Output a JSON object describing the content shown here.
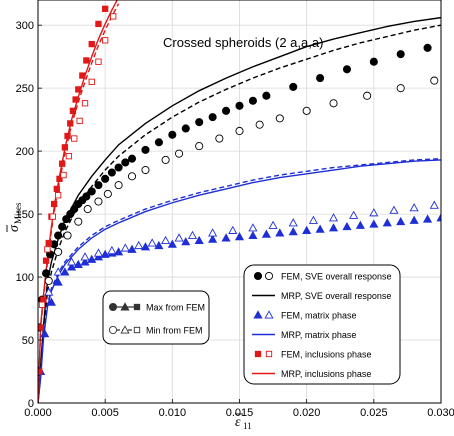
{
  "chart_data": {
    "type": "line",
    "title": "Crossed spheroids (2 a,a,a)",
    "xlabel": {
      "main": "ε",
      "sub": "11"
    },
    "ylabel": {
      "main": "σ",
      "sub": "Mises"
    },
    "xlim": [
      0,
      0.03
    ],
    "ylim": [
      0,
      320
    ],
    "xticks": [
      "0.000",
      "0.005",
      "0.010",
      "0.015",
      "0.020",
      "0.025",
      "0.030"
    ],
    "xtick_values": [
      0,
      0.005,
      0.01,
      0.015,
      0.02,
      0.025,
      0.03
    ],
    "yticks": [
      "0",
      "50",
      "100",
      "150",
      "200",
      "250",
      "300"
    ],
    "ytick_values": [
      0,
      50,
      100,
      150,
      200,
      250,
      300
    ],
    "grid": true,
    "colors": {
      "overall": "#000000",
      "matrix": "#1f2fd6",
      "inclusion": "#e01818"
    },
    "series": [
      {
        "name": "MRP, SVE overall response",
        "kind": "line",
        "dash": false,
        "color": "#000000",
        "x": [
          0,
          0.0002,
          0.0004,
          0.0007,
          0.001,
          0.0015,
          0.002,
          0.003,
          0.004,
          0.005,
          0.006,
          0.008,
          0.01,
          0.012,
          0.014,
          0.016,
          0.018,
          0.02,
          0.022,
          0.024,
          0.026,
          0.028,
          0.03
        ],
        "y": [
          0,
          30,
          60,
          96,
          112,
          130,
          145,
          165,
          180,
          193,
          205,
          222,
          236,
          248,
          258,
          267,
          275,
          283,
          289,
          294,
          299,
          303,
          306
        ]
      },
      {
        "name": "Max from FEM (overall)",
        "kind": "line",
        "dash": true,
        "color": "#000000",
        "x": [
          0,
          0.0002,
          0.0004,
          0.0007,
          0.001,
          0.0015,
          0.002,
          0.003,
          0.004,
          0.005,
          0.006,
          0.008,
          0.01,
          0.012,
          0.014,
          0.016,
          0.018,
          0.02,
          0.022,
          0.024,
          0.026,
          0.028,
          0.03
        ],
        "y": [
          0,
          25,
          55,
          88,
          104,
          122,
          136,
          157,
          172,
          185,
          196,
          213,
          227,
          239,
          249,
          258,
          266,
          273,
          280,
          286,
          291,
          296,
          300
        ]
      },
      {
        "name": "FEM, SVE overall response (max)",
        "kind": "marker",
        "marker": "filled-circle",
        "color": "#000000",
        "x": [
          5e-05,
          0.0001,
          0.0003,
          0.0006,
          0.0009,
          0.0012,
          0.0015,
          0.0018,
          0.0021,
          0.0024,
          0.0027,
          0.003,
          0.0033,
          0.0036,
          0.004,
          0.0045,
          0.005,
          0.0055,
          0.006,
          0.0065,
          0.007,
          0.008,
          0.009,
          0.01,
          0.011,
          0.012,
          0.013,
          0.014,
          0.015,
          0.016,
          0.017,
          0.019,
          0.021,
          0.023,
          0.025,
          0.027,
          0.029
        ],
        "y": [
          25,
          60,
          82,
          103,
          118,
          126,
          133,
          140,
          146,
          150,
          154,
          158,
          161,
          164,
          168,
          173,
          178,
          183,
          187,
          191,
          194,
          201,
          207,
          213,
          218,
          223,
          227,
          232,
          236,
          240,
          244,
          251,
          258,
          265,
          271,
          277,
          282
        ]
      },
      {
        "name": "FEM, SVE overall response (min)",
        "kind": "marker",
        "marker": "open-circle",
        "color": "#000000",
        "x": [
          0.0008,
          0.0015,
          0.0022,
          0.003,
          0.0037,
          0.0045,
          0.0052,
          0.006,
          0.007,
          0.008,
          0.0095,
          0.0105,
          0.012,
          0.0135,
          0.015,
          0.0165,
          0.018,
          0.02,
          0.022,
          0.0245,
          0.027,
          0.0295
        ],
        "y": [
          97,
          120,
          133,
          144,
          154,
          160,
          166,
          173,
          180,
          185,
          193,
          198,
          204,
          210,
          216,
          221,
          226,
          232,
          238,
          244,
          250,
          256
        ]
      },
      {
        "name": "MRP, matrix phase",
        "kind": "line",
        "dash": false,
        "color": "#1f2fd6",
        "x": [
          0,
          0.0002,
          0.0004,
          0.0007,
          0.001,
          0.0015,
          0.002,
          0.003,
          0.004,
          0.005,
          0.006,
          0.008,
          0.01,
          0.012,
          0.014,
          0.016,
          0.018,
          0.02,
          0.022,
          0.024,
          0.026,
          0.028,
          0.03
        ],
        "y": [
          0,
          20,
          50,
          76,
          89,
          101,
          110,
          122,
          131,
          138,
          143,
          152,
          159,
          165,
          170,
          175,
          179,
          182,
          185,
          188,
          190,
          192,
          193
        ]
      },
      {
        "name": "Max from FEM (matrix)",
        "kind": "line",
        "dash": true,
        "color": "#1f2fd6",
        "x": [
          0,
          0.0002,
          0.0004,
          0.0007,
          0.001,
          0.0015,
          0.002,
          0.003,
          0.004,
          0.005,
          0.006,
          0.008,
          0.01,
          0.012,
          0.014,
          0.016,
          0.018,
          0.02,
          0.022,
          0.024,
          0.026,
          0.028,
          0.03
        ],
        "y": [
          0,
          22,
          52,
          78,
          91,
          103,
          112,
          124,
          133,
          140,
          145,
          154,
          161,
          167,
          172,
          177,
          181,
          184,
          187,
          189,
          191,
          193,
          194
        ]
      },
      {
        "name": "FEM, matrix phase (max)",
        "kind": "marker",
        "marker": "filled-triangle",
        "color": "#1f2fd6",
        "x": [
          0.0002,
          0.0005,
          0.001,
          0.0015,
          0.002,
          0.0025,
          0.003,
          0.0035,
          0.004,
          0.0045,
          0.005,
          0.0055,
          0.006,
          0.007,
          0.008,
          0.009,
          0.01,
          0.011,
          0.012,
          0.013,
          0.014,
          0.015,
          0.016,
          0.017,
          0.018,
          0.019,
          0.02,
          0.021,
          0.022,
          0.023,
          0.024,
          0.025,
          0.026,
          0.027,
          0.028,
          0.029,
          0.03
        ],
        "y": [
          25,
          55,
          80,
          96,
          104,
          108,
          110,
          112,
          114,
          116,
          118,
          119,
          120,
          122,
          124,
          125,
          126,
          128,
          129,
          130,
          131,
          132,
          133,
          134,
          135,
          136,
          137,
          138,
          139,
          140,
          141,
          142,
          143,
          144,
          145,
          146,
          147
        ]
      },
      {
        "name": "FEM, matrix phase (min)",
        "kind": "marker",
        "marker": "open-triangle",
        "color": "#1f2fd6",
        "x": [
          0.0008,
          0.0015,
          0.0025,
          0.0035,
          0.0045,
          0.0055,
          0.0065,
          0.0075,
          0.0085,
          0.0095,
          0.0105,
          0.0115,
          0.013,
          0.0145,
          0.016,
          0.0175,
          0.019,
          0.0205,
          0.022,
          0.0235,
          0.025,
          0.0265,
          0.028,
          0.0295
        ],
        "y": [
          88,
          104,
          112,
          116,
          119,
          121,
          123,
          125,
          127,
          129,
          131,
          133,
          135,
          137,
          139,
          141,
          143,
          145,
          147,
          149,
          151,
          153,
          155,
          157
        ]
      },
      {
        "name": "MRP, inclusions phase",
        "kind": "line",
        "dash": false,
        "color": "#e01818",
        "x": [
          0,
          0.0001,
          0.0002,
          0.0004,
          0.0006,
          0.0008,
          0.001,
          0.0013,
          0.0016,
          0.002,
          0.0025,
          0.003,
          0.0035,
          0.004,
          0.0045,
          0.005,
          0.0055,
          0.006
        ],
        "y": [
          0,
          30,
          62,
          85,
          105,
          123,
          140,
          162,
          180,
          202,
          225,
          243,
          260,
          275,
          289,
          301,
          312,
          322
        ]
      },
      {
        "name": "Max from FEM (inclusions)",
        "kind": "line",
        "dash": true,
        "color": "#e01818",
        "x": [
          0,
          0.0001,
          0.0002,
          0.0004,
          0.0006,
          0.0008,
          0.001,
          0.0013,
          0.0016,
          0.002,
          0.0025,
          0.003,
          0.0035,
          0.004,
          0.0045,
          0.005,
          0.0055,
          0.006
        ],
        "y": [
          0,
          28,
          60,
          82,
          102,
          120,
          137,
          158,
          176,
          198,
          221,
          239,
          255,
          270,
          284,
          296,
          307,
          317
        ]
      },
      {
        "name": "FEM, inclusions phase (max)",
        "kind": "marker",
        "marker": "filled-square",
        "color": "#e01818",
        "x": [
          0.0001,
          0.0002,
          0.0004,
          0.0006,
          0.0008,
          0.001,
          0.0012,
          0.0014,
          0.0016,
          0.0018,
          0.002,
          0.0022,
          0.0024,
          0.0026,
          0.0028,
          0.003,
          0.0033,
          0.0036,
          0.004,
          0.0045,
          0.005
        ],
        "y": [
          25,
          60,
          82,
          113,
          127,
          148,
          158,
          170,
          178,
          190,
          203,
          212,
          222,
          232,
          241,
          249,
          260,
          272,
          285,
          301,
          313
        ]
      },
      {
        "name": "FEM, inclusions phase (min)",
        "kind": "marker",
        "marker": "open-square",
        "color": "#e01818",
        "x": [
          0.0003,
          0.0007,
          0.0011,
          0.0015,
          0.0019,
          0.0023,
          0.0027,
          0.0031,
          0.0035,
          0.004,
          0.0045,
          0.005,
          0.0056
        ],
        "y": [
          78,
          122,
          148,
          165,
          181,
          196,
          210,
          224,
          238,
          255,
          271,
          288,
          307
        ]
      }
    ],
    "legend_main": {
      "position": "lower-right",
      "entries": [
        {
          "label": "FEM, SVE overall response",
          "type": "markers",
          "filled": "circle",
          "open": "circle",
          "color": "#000000"
        },
        {
          "label": "MRP, SVE overall response",
          "type": "line",
          "color": "#000000"
        },
        {
          "label": "FEM, matrix phase",
          "type": "markers",
          "filled": "triangle",
          "open": "triangle",
          "color": "#1f2fd6"
        },
        {
          "label": "MRP, matrix phase",
          "type": "line",
          "color": "#1f2fd6"
        },
        {
          "label": "FEM, inclusions phase",
          "type": "markers",
          "filled": "square",
          "open": "square",
          "color": "#e01818"
        },
        {
          "label": "MRP, inclusions phase",
          "type": "line",
          "color": "#e01818"
        }
      ]
    },
    "legend_minmax": {
      "position": "center-left",
      "entries": [
        {
          "label": "Max from FEM",
          "type": "filled"
        },
        {
          "label": "Min from FEM",
          "type": "open"
        }
      ]
    }
  }
}
